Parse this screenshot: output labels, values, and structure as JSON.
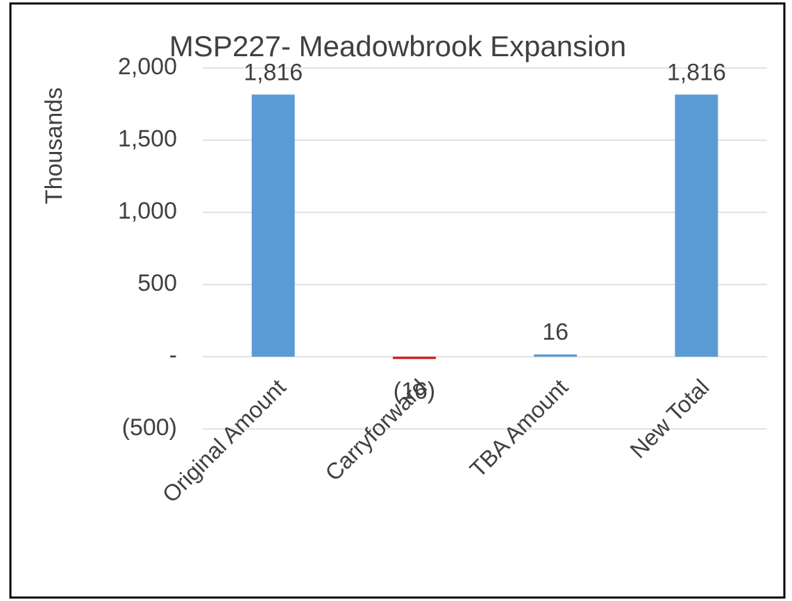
{
  "chart_data": {
    "type": "bar",
    "title": "MSP227- Meadowbrook Expansion",
    "y_label": "Thousands",
    "categories": [
      "Original Amount",
      "Carryforward",
      "TBA Amount",
      "New Total"
    ],
    "values": [
      1816,
      -16,
      16,
      1816
    ],
    "value_labels": [
      "1,816",
      "(16)",
      "16",
      "1,816"
    ],
    "colors": [
      "#5b9bd5",
      "#e0191c",
      "#5b9bd5",
      "#5b9bd5"
    ],
    "ylim": [
      -500,
      2000
    ],
    "yticks": [
      {
        "value": -500,
        "label": "(500)"
      },
      {
        "value": 0,
        "label": "-"
      },
      500,
      {
        "value": 1000,
        "label": "1,000"
      },
      {
        "value": 1500,
        "label": "1,500"
      },
      {
        "value": 2000,
        "label": "2,000"
      }
    ],
    "grid": true
  }
}
